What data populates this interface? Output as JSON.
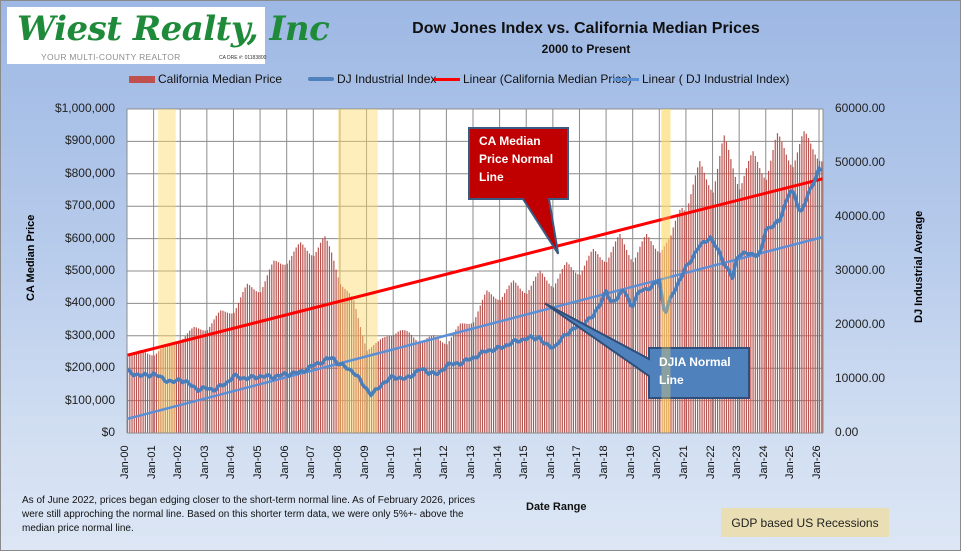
{
  "logo": {
    "name": "Wiest Realty, Inc",
    "tagline": "YOUR MULTI-COUNTY REALTOR",
    "license": "CA DRE #: 01183800"
  },
  "chart_data": {
    "type": "bar",
    "title": "Dow Jones Index vs. California Median Prices",
    "subtitle": "2000 to Present",
    "xlabel": "Date Range",
    "ylabel": "CA Median  Price",
    "y2label": "DJ Industrial Average",
    "ylim": [
      0,
      1000000
    ],
    "y2lim": [
      0,
      60000
    ],
    "grid": true,
    "legend_position": "top",
    "legend": [
      {
        "label": "California Median Price",
        "type": "bar",
        "color": "#c0504d"
      },
      {
        "label": "DJ  Industrial Index",
        "type": "line",
        "color": "#4f81bd"
      },
      {
        "label": "Linear (California Median Price)",
        "type": "trendline",
        "color": "#ff0000"
      },
      {
        "label": "Linear ( DJ  Industrial Index)",
        "type": "trendline",
        "color": "#5b8fd6"
      }
    ],
    "yticks": [
      "$0",
      "$100,000",
      "$200,000",
      "$300,000",
      "$400,000",
      "$500,000",
      "$600,000",
      "$700,000",
      "$800,000",
      "$900,000",
      "$1,000,000"
    ],
    "y2ticks": [
      "0.00",
      "10000.00",
      "20000.00",
      "30000.00",
      "40000.00",
      "50000.00",
      "60000.00"
    ],
    "xticks": [
      "Jan-00",
      "Jan-01",
      "Jan-02",
      "Jan-03",
      "Jan-04",
      "Jan-05",
      "Jan-06",
      "Jan-07",
      "Jan-08",
      "Jan-09",
      "Jan-10",
      "Jan-11",
      "Jan-12",
      "Jan-13",
      "Jan-14",
      "Jan-15",
      "Jan-16",
      "Jan-17",
      "Jan-18",
      "Jan-19",
      "Jan-20",
      "Jan-21",
      "Jan-22",
      "Jan-23",
      "Jan-24",
      "Jan-25",
      "Jan-26"
    ],
    "x_start": "2000-01",
    "x_end": "2026-02",
    "series": [
      {
        "name": "California Median Price",
        "axis": "left",
        "note": "approximate monthly values, keyed by year-month (decimal year)",
        "keypoints": [
          [
            2000.0,
            240000
          ],
          [
            2000.5,
            250000
          ],
          [
            2001.0,
            245000
          ],
          [
            2001.5,
            270000
          ],
          [
            2002.0,
            290000
          ],
          [
            2002.5,
            320000
          ],
          [
            2003.0,
            325000
          ],
          [
            2003.5,
            370000
          ],
          [
            2004.0,
            380000
          ],
          [
            2004.5,
            450000
          ],
          [
            2005.0,
            445000
          ],
          [
            2005.5,
            520000
          ],
          [
            2006.0,
            535000
          ],
          [
            2006.5,
            575000
          ],
          [
            2007.0,
            560000
          ],
          [
            2007.4,
            595000
          ],
          [
            2007.7,
            550000
          ],
          [
            2008.0,
            470000
          ],
          [
            2008.5,
            400000
          ],
          [
            2009.0,
            260000
          ],
          [
            2009.4,
            275000
          ],
          [
            2009.8,
            305000
          ],
          [
            2010.2,
            315000
          ],
          [
            2010.6,
            305000
          ],
          [
            2011.0,
            285000
          ],
          [
            2011.5,
            295000
          ],
          [
            2012.0,
            280000
          ],
          [
            2012.5,
            330000
          ],
          [
            2013.0,
            350000
          ],
          [
            2013.5,
            430000
          ],
          [
            2014.0,
            420000
          ],
          [
            2014.5,
            460000
          ],
          [
            2015.0,
            440000
          ],
          [
            2015.5,
            490000
          ],
          [
            2016.0,
            460000
          ],
          [
            2016.5,
            515000
          ],
          [
            2017.0,
            500000
          ],
          [
            2017.5,
            555000
          ],
          [
            2018.0,
            540000
          ],
          [
            2018.5,
            600000
          ],
          [
            2019.0,
            540000
          ],
          [
            2019.5,
            600000
          ],
          [
            2020.0,
            570000
          ],
          [
            2020.4,
            590000
          ],
          [
            2020.8,
            710000
          ],
          [
            2021.0,
            700000
          ],
          [
            2021.5,
            820000
          ],
          [
            2022.0,
            760000
          ],
          [
            2022.4,
            900000
          ],
          [
            2023.0,
            770000
          ],
          [
            2023.5,
            850000
          ],
          [
            2024.0,
            800000
          ],
          [
            2024.4,
            905000
          ],
          [
            2025.0,
            840000
          ],
          [
            2025.4,
            910000
          ],
          [
            2025.8,
            880000
          ],
          [
            2026.1,
            850000
          ]
        ]
      },
      {
        "name": "DJ  Industrial Index",
        "axis": "right",
        "keypoints": [
          [
            2000.0,
            11400
          ],
          [
            2000.5,
            10600
          ],
          [
            2001.0,
            10900
          ],
          [
            2001.7,
            9300
          ],
          [
            2002.0,
            10000
          ],
          [
            2002.7,
            8000
          ],
          [
            2003.0,
            8300
          ],
          [
            2003.3,
            8000
          ],
          [
            2003.8,
            9500
          ],
          [
            2004.0,
            10500
          ],
          [
            2004.5,
            10100
          ],
          [
            2005.0,
            10500
          ],
          [
            2005.5,
            10400
          ],
          [
            2006.0,
            10900
          ],
          [
            2006.5,
            11200
          ],
          [
            2007.0,
            12500
          ],
          [
            2007.7,
            14000
          ],
          [
            2008.0,
            12700
          ],
          [
            2008.5,
            11400
          ],
          [
            2008.9,
            8800
          ],
          [
            2009.2,
            7000
          ],
          [
            2009.6,
            9200
          ],
          [
            2010.0,
            10400
          ],
          [
            2010.5,
            10000
          ],
          [
            2011.0,
            11800
          ],
          [
            2011.7,
            10800
          ],
          [
            2012.0,
            12600
          ],
          [
            2012.5,
            12900
          ],
          [
            2013.0,
            13900
          ],
          [
            2013.5,
            15200
          ],
          [
            2014.0,
            15700
          ],
          [
            2014.5,
            16800
          ],
          [
            2015.0,
            17500
          ],
          [
            2015.5,
            17700
          ],
          [
            2015.7,
            16300
          ],
          [
            2016.1,
            16000
          ],
          [
            2016.5,
            18400
          ],
          [
            2017.0,
            19900
          ],
          [
            2017.5,
            21500
          ],
          [
            2018.0,
            26100
          ],
          [
            2018.2,
            24100
          ],
          [
            2018.7,
            26500
          ],
          [
            2018.95,
            23300
          ],
          [
            2019.3,
            26500
          ],
          [
            2019.7,
            26900
          ],
          [
            2020.0,
            28500
          ],
          [
            2020.2,
            21900
          ],
          [
            2020.5,
            25800
          ],
          [
            2020.9,
            29600
          ],
          [
            2021.0,
            30600
          ],
          [
            2021.5,
            34500
          ],
          [
            2021.9,
            36300
          ],
          [
            2022.3,
            33000
          ],
          [
            2022.5,
            30800
          ],
          [
            2022.75,
            28700
          ],
          [
            2022.95,
            33100
          ],
          [
            2023.3,
            33200
          ],
          [
            2023.8,
            33000
          ],
          [
            2024.0,
            37700
          ],
          [
            2024.5,
            39100
          ],
          [
            2024.9,
            44900
          ],
          [
            2025.1,
            43800
          ],
          [
            2025.3,
            40700
          ],
          [
            2025.6,
            44100
          ],
          [
            2025.9,
            47700
          ],
          [
            2026.0,
            49000
          ],
          [
            2026.15,
            48300
          ]
        ]
      },
      {
        "name": "Linear (California Median Price)",
        "axis": "left",
        "type": "trendline",
        "endpoints": [
          [
            2000.0,
            240000
          ],
          [
            2026.15,
            785000
          ]
        ]
      },
      {
        "name": "Linear ( DJ  Industrial Index)",
        "axis": "right",
        "type": "trendline",
        "endpoints": [
          [
            2000.0,
            2600
          ],
          [
            2026.15,
            36300
          ]
        ]
      }
    ],
    "recessions": [
      {
        "start": 2001.17,
        "end": 2001.83
      },
      {
        "start": 2007.92,
        "end": 2009.42
      },
      {
        "start": 2020.08,
        "end": 2020.42
      }
    ],
    "annotations": [
      {
        "text": "CA Median Price Normal Line",
        "color": "#c00000",
        "points_to": [
          2016.2,
          553000
        ]
      },
      {
        "text": "DJIA Normal Line",
        "color": "#4f81bd",
        "points_to": [
          2015.7,
          24000
        ]
      }
    ]
  },
  "callouts": {
    "ca": [
      "CA Median",
      "Price Normal",
      "Line"
    ],
    "djia": [
      "DJIA  Normal",
      "Line"
    ]
  },
  "footer": {
    "note": "As of June 2022, prices began edging closer to the short-term  normal line. As of February 2026, prices were still approching the normal line. Based on this shorter term data, we were only 5%+- above the median price normal line.",
    "recession_key": "GDP  based US Recessions"
  }
}
